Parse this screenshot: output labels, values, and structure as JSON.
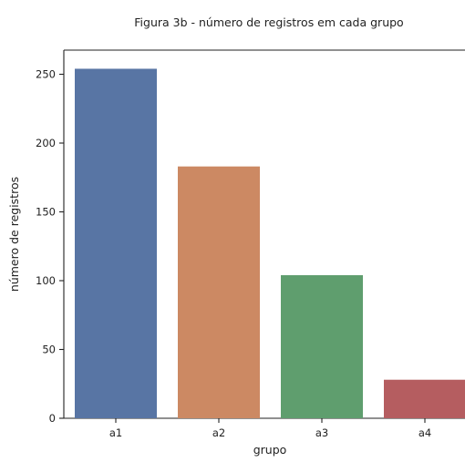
{
  "chart_data": {
    "type": "bar",
    "title": "Figura 3b - número de registros em cada grupo",
    "xlabel": "grupo",
    "ylabel": "número de registros",
    "categories": [
      "a1",
      "a2",
      "a3",
      "a4"
    ],
    "values": [
      254,
      183,
      104,
      28
    ],
    "colors": [
      "#5875a4",
      "#cc8963",
      "#5f9e6e",
      "#b55d60"
    ],
    "ylim": [
      0,
      270
    ],
    "yticks": [
      0,
      50,
      100,
      150,
      200,
      250
    ],
    "grid": false
  }
}
